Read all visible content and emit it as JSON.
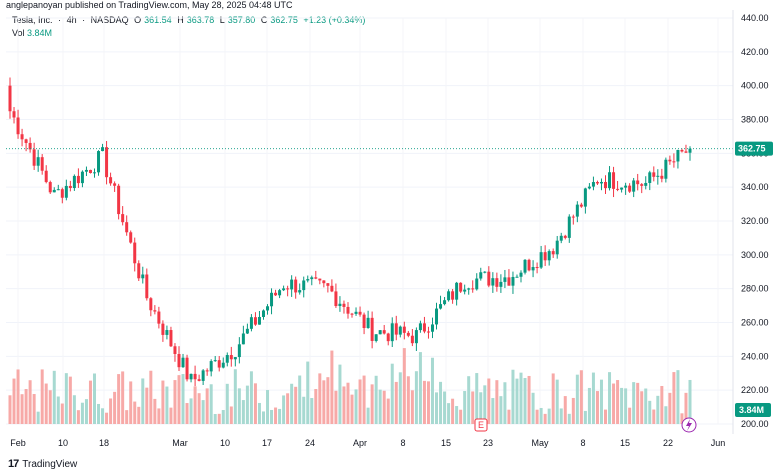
{
  "header": {
    "text": "anglepanoyan published on TradingView.com, May 28, 2025 04:48 UTC"
  },
  "legend": {
    "symbol": "Tesla, Inc.",
    "interval": "4h",
    "exchange": "NASDAQ",
    "o_label": "O",
    "o_value": "361.54",
    "h_label": "H",
    "h_value": "363.78",
    "l_label": "L",
    "l_value": "357.80",
    "c_label": "C",
    "c_value": "362.75",
    "change": "+1.23 (+0.34%)"
  },
  "volume_legend": {
    "label": "Vol",
    "value": "3.84M"
  },
  "price_axis": {
    "ticks": [
      "440.00",
      "420.00",
      "400.00",
      "380.00",
      "360.00",
      "340.00",
      "320.00",
      "300.00",
      "280.00",
      "260.00",
      "240.00",
      "220.00",
      "200.00"
    ],
    "last_price_label": "362.75",
    "volume_label": "3.84M"
  },
  "time_axis": {
    "ticks": [
      "Feb",
      "10",
      "18",
      "Mar",
      "10",
      "17",
      "24",
      "Apr",
      "8",
      "15",
      "23",
      "May",
      "8",
      "15",
      "22",
      "Jun"
    ]
  },
  "earnings_marker": "E",
  "footer": {
    "brand": "TradingView",
    "logo": "17"
  },
  "colors": {
    "up": "#089981",
    "down": "#f23645",
    "up_vol": "#a7d9d1",
    "down_vol": "#f7a9a7"
  },
  "chart_data": {
    "type": "candlestick",
    "title": "Tesla, Inc. · 4h · NASDAQ",
    "ylim": [
      200,
      440
    ],
    "last_price": 362.75,
    "x": [
      "Feb",
      "10",
      "18",
      "Mar",
      "10",
      "17",
      "24",
      "Apr",
      "8",
      "15",
      "23",
      "May",
      "8",
      "15",
      "22",
      "Jun"
    ],
    "ohlc_summary": [
      {
        "period": "Feb",
        "open": 400,
        "high": 415,
        "low": 380,
        "close": 385
      },
      {
        "period": "10",
        "open": 360,
        "high": 365,
        "low": 325,
        "close": 335
      },
      {
        "period": "18",
        "open": 350,
        "high": 365,
        "low": 345,
        "close": 358
      },
      {
        "period": "Mar",
        "open": 300,
        "high": 305,
        "low": 270,
        "close": 275
      },
      {
        "period": "10",
        "open": 255,
        "high": 262,
        "low": 220,
        "close": 225
      },
      {
        "period": "17",
        "open": 240,
        "high": 250,
        "low": 232,
        "close": 245
      },
      {
        "period": "24",
        "open": 270,
        "high": 290,
        "low": 262,
        "close": 283
      },
      {
        "period": "Apr",
        "open": 255,
        "high": 285,
        "low": 250,
        "close": 280
      },
      {
        "period": "8",
        "open": 230,
        "high": 260,
        "low": 220,
        "close": 255
      },
      {
        "period": "15",
        "open": 255,
        "high": 262,
        "low": 245,
        "close": 252
      },
      {
        "period": "23",
        "open": 255,
        "high": 290,
        "low": 248,
        "close": 285
      },
      {
        "period": "May",
        "open": 282,
        "high": 292,
        "low": 275,
        "close": 287
      },
      {
        "period": "8",
        "open": 285,
        "high": 310,
        "low": 278,
        "close": 305
      },
      {
        "period": "15",
        "open": 340,
        "high": 350,
        "low": 325,
        "close": 345
      },
      {
        "period": "22",
        "open": 345,
        "high": 352,
        "low": 333,
        "close": 342
      },
      {
        "period": "Jun",
        "open": 342,
        "high": 364,
        "low": 340,
        "close": 362.75
      }
    ],
    "volume_last": "3.84M"
  }
}
